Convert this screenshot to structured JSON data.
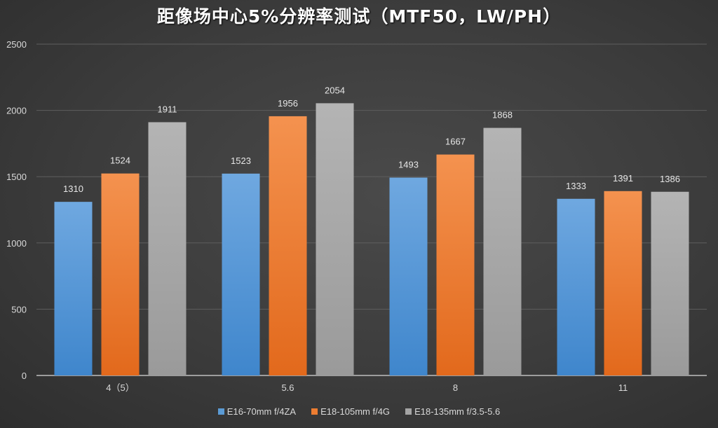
{
  "chart_data": {
    "type": "bar",
    "title": "距像场中心5%分辨率测试（MTF50，LW/PH）",
    "xlabel": "",
    "ylabel": "",
    "ylim": [
      0,
      2500
    ],
    "yticks": [
      0,
      500,
      1000,
      1500,
      2000,
      2500
    ],
    "grid": true,
    "legend_position": "bottom",
    "categories": [
      "4（5）",
      "5.6",
      "8",
      "11"
    ],
    "series": [
      {
        "name": "E16-70mm f/4ZA",
        "color": "#5b9bd5",
        "values": [
          1310,
          1523,
          1493,
          1333
        ]
      },
      {
        "name": "E18-105mm f/4G",
        "color": "#ed7d31",
        "values": [
          1524,
          1956,
          1667,
          1391
        ]
      },
      {
        "name": "E18-135mm f/3.5-5.6",
        "color": "#a5a5a5",
        "values": [
          1911,
          2054,
          1868,
          1386
        ]
      }
    ]
  }
}
